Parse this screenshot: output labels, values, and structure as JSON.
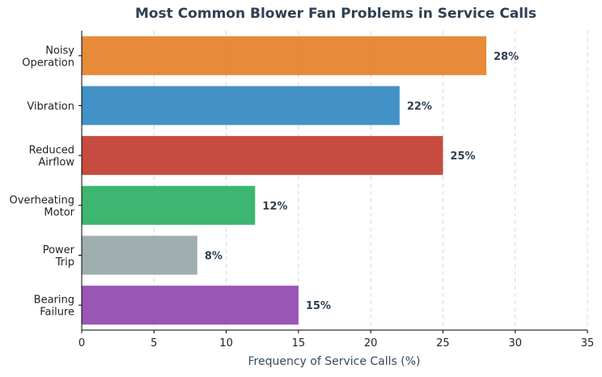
{
  "chart_data": {
    "type": "bar",
    "orientation": "horizontal",
    "title": "Most Common Blower Fan Problems in Service Calls",
    "xlabel": "Frequency of Service Calls (%)",
    "ylabel": "",
    "xlim": [
      0,
      35
    ],
    "xticks": [
      0,
      5,
      10,
      15,
      20,
      25,
      30,
      35
    ],
    "grid": "vertical dashed",
    "categories": [
      [
        "Noisy",
        "Operation"
      ],
      [
        "Vibration"
      ],
      [
        "Reduced",
        "Airflow"
      ],
      [
        "Overheating",
        "Motor"
      ],
      [
        "Power",
        "Trip"
      ],
      [
        "Bearing",
        "Failure"
      ]
    ],
    "values": [
      28,
      22,
      25,
      12,
      8,
      15
    ],
    "value_labels": [
      "28%",
      "22%",
      "25%",
      "12%",
      "8%",
      "15%"
    ],
    "colors": [
      "#e67e22",
      "#2e86c1",
      "#c0392b",
      "#27ae60",
      "#95a5a6",
      "#8e44ad"
    ]
  }
}
